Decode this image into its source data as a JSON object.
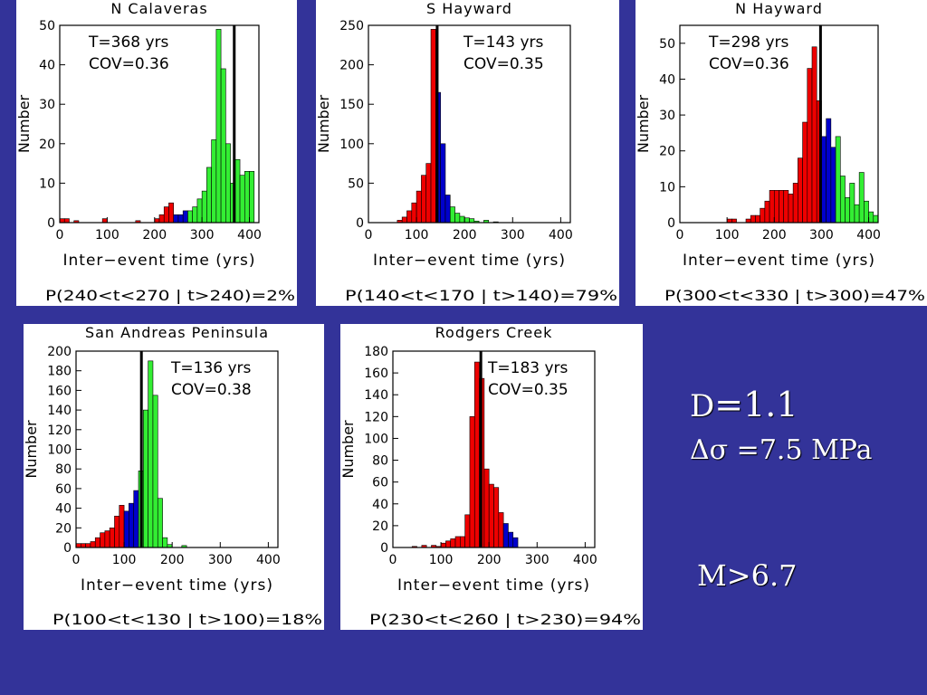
{
  "slide": {
    "d_label": "D",
    "d_value": "=1.1",
    "stress_label": "Δσ =7.5 MPa",
    "magnitude_label": "M>6.7"
  },
  "colors": {
    "background": "#333399",
    "red": "#ee0000",
    "blue": "#0000cc",
    "green": "#33ee33",
    "mean_line": "#000000"
  },
  "chart_data": [
    {
      "type": "bar",
      "title": "N Calaveras",
      "xlabel": "Inter−event time (yrs)",
      "ylabel": "Number",
      "xlim": [
        0,
        420
      ],
      "ylim": [
        0,
        50
      ],
      "xticks": [
        0,
        100,
        200,
        300,
        400
      ],
      "yticks": [
        0,
        10,
        20,
        30,
        40,
        50
      ],
      "bin_width": 10,
      "mean": 368,
      "stats": [
        "T=368 yrs",
        "COV=0.36"
      ],
      "probability": "P(240<t<270 | t>240)=2%",
      "bins": [
        {
          "x": 0,
          "y": 1,
          "c": "red"
        },
        {
          "x": 10,
          "y": 1,
          "c": "red"
        },
        {
          "x": 30,
          "y": 0.5,
          "c": "red"
        },
        {
          "x": 90,
          "y": 1,
          "c": "red"
        },
        {
          "x": 160,
          "y": 0.5,
          "c": "red"
        },
        {
          "x": 200,
          "y": 1,
          "c": "red"
        },
        {
          "x": 210,
          "y": 2,
          "c": "red"
        },
        {
          "x": 220,
          "y": 4,
          "c": "red"
        },
        {
          "x": 230,
          "y": 5,
          "c": "red"
        },
        {
          "x": 240,
          "y": 2,
          "c": "blue"
        },
        {
          "x": 250,
          "y": 2,
          "c": "blue"
        },
        {
          "x": 260,
          "y": 3,
          "c": "blue"
        },
        {
          "x": 270,
          "y": 3,
          "c": "green"
        },
        {
          "x": 280,
          "y": 4,
          "c": "green"
        },
        {
          "x": 290,
          "y": 6,
          "c": "green"
        },
        {
          "x": 300,
          "y": 8,
          "c": "green"
        },
        {
          "x": 310,
          "y": 14,
          "c": "green"
        },
        {
          "x": 320,
          "y": 21,
          "c": "green"
        },
        {
          "x": 330,
          "y": 49,
          "c": "green"
        },
        {
          "x": 340,
          "y": 39,
          "c": "green"
        },
        {
          "x": 350,
          "y": 20,
          "c": "green"
        },
        {
          "x": 360,
          "y": 10,
          "c": "green"
        },
        {
          "x": 370,
          "y": 16,
          "c": "green"
        },
        {
          "x": 380,
          "y": 12,
          "c": "green"
        },
        {
          "x": 390,
          "y": 13,
          "c": "green"
        },
        {
          "x": 400,
          "y": 13,
          "c": "green"
        }
      ]
    },
    {
      "type": "bar",
      "title": "S Hayward",
      "xlabel": "Inter−event time (yrs)",
      "ylabel": "Number",
      "xlim": [
        0,
        420
      ],
      "ylim": [
        0,
        250
      ],
      "xticks": [
        0,
        100,
        200,
        300,
        400
      ],
      "yticks": [
        0,
        50,
        100,
        150,
        200,
        250
      ],
      "bin_width": 10,
      "mean": 143,
      "stats": [
        "T=143 yrs",
        "COV=0.35"
      ],
      "probability": "P(140<t<170 | t>140)=79%",
      "bins": [
        {
          "x": 60,
          "y": 3,
          "c": "red"
        },
        {
          "x": 70,
          "y": 7,
          "c": "red"
        },
        {
          "x": 80,
          "y": 15,
          "c": "red"
        },
        {
          "x": 90,
          "y": 25,
          "c": "red"
        },
        {
          "x": 100,
          "y": 40,
          "c": "red"
        },
        {
          "x": 110,
          "y": 60,
          "c": "red"
        },
        {
          "x": 120,
          "y": 75,
          "c": "red"
        },
        {
          "x": 130,
          "y": 245,
          "c": "red"
        },
        {
          "x": 140,
          "y": 165,
          "c": "blue"
        },
        {
          "x": 150,
          "y": 100,
          "c": "blue"
        },
        {
          "x": 160,
          "y": 35,
          "c": "blue"
        },
        {
          "x": 170,
          "y": 20,
          "c": "green"
        },
        {
          "x": 180,
          "y": 12,
          "c": "green"
        },
        {
          "x": 190,
          "y": 8,
          "c": "green"
        },
        {
          "x": 200,
          "y": 6,
          "c": "green"
        },
        {
          "x": 210,
          "y": 5,
          "c": "green"
        },
        {
          "x": 220,
          "y": 2,
          "c": "green"
        },
        {
          "x": 240,
          "y": 3,
          "c": "green"
        },
        {
          "x": 260,
          "y": 1,
          "c": "green"
        }
      ]
    },
    {
      "type": "bar",
      "title": "N Hayward",
      "xlabel": "Inter−event time (yrs)",
      "ylabel": "Number",
      "xlim": [
        0,
        420
      ],
      "ylim": [
        0,
        55
      ],
      "xticks": [
        0,
        100,
        200,
        300,
        400
      ],
      "yticks": [
        0,
        10,
        20,
        30,
        40,
        50
      ],
      "bin_width": 10,
      "mean": 298,
      "stats": [
        "T=298 yrs",
        "COV=0.36"
      ],
      "probability": "P(300<t<330 | t>300)=47%",
      "bins": [
        {
          "x": 100,
          "y": 1,
          "c": "red"
        },
        {
          "x": 110,
          "y": 1,
          "c": "red"
        },
        {
          "x": 140,
          "y": 1,
          "c": "red"
        },
        {
          "x": 150,
          "y": 2,
          "c": "red"
        },
        {
          "x": 160,
          "y": 2,
          "c": "red"
        },
        {
          "x": 170,
          "y": 4,
          "c": "red"
        },
        {
          "x": 180,
          "y": 6,
          "c": "red"
        },
        {
          "x": 190,
          "y": 9,
          "c": "red"
        },
        {
          "x": 200,
          "y": 9,
          "c": "red"
        },
        {
          "x": 210,
          "y": 9,
          "c": "red"
        },
        {
          "x": 220,
          "y": 9,
          "c": "red"
        },
        {
          "x": 230,
          "y": 8,
          "c": "red"
        },
        {
          "x": 240,
          "y": 11,
          "c": "red"
        },
        {
          "x": 250,
          "y": 18,
          "c": "red"
        },
        {
          "x": 260,
          "y": 28,
          "c": "red"
        },
        {
          "x": 270,
          "y": 43,
          "c": "red"
        },
        {
          "x": 280,
          "y": 49,
          "c": "red"
        },
        {
          "x": 290,
          "y": 34,
          "c": "red"
        },
        {
          "x": 300,
          "y": 24,
          "c": "blue"
        },
        {
          "x": 310,
          "y": 29,
          "c": "blue"
        },
        {
          "x": 320,
          "y": 21,
          "c": "blue"
        },
        {
          "x": 330,
          "y": 24,
          "c": "green"
        },
        {
          "x": 340,
          "y": 13,
          "c": "green"
        },
        {
          "x": 350,
          "y": 7,
          "c": "green"
        },
        {
          "x": 360,
          "y": 11,
          "c": "green"
        },
        {
          "x": 370,
          "y": 5,
          "c": "green"
        },
        {
          "x": 380,
          "y": 14,
          "c": "green"
        },
        {
          "x": 390,
          "y": 6,
          "c": "green"
        },
        {
          "x": 400,
          "y": 3,
          "c": "green"
        },
        {
          "x": 410,
          "y": 2,
          "c": "green"
        }
      ]
    },
    {
      "type": "bar",
      "title": "San Andreas Peninsula",
      "xlabel": "Inter−event time (yrs)",
      "ylabel": "Number",
      "xlim": [
        0,
        420
      ],
      "ylim": [
        0,
        200
      ],
      "xticks": [
        0,
        100,
        200,
        300,
        400
      ],
      "yticks": [
        0,
        20,
        40,
        60,
        80,
        100,
        120,
        140,
        160,
        180,
        200
      ],
      "bin_width": 10,
      "mean": 136,
      "stats": [
        "T=136 yrs",
        "COV=0.38"
      ],
      "probability": "P(100<t<130 | t>100)=18%",
      "bins": [
        {
          "x": 0,
          "y": 4,
          "c": "red"
        },
        {
          "x": 10,
          "y": 4,
          "c": "red"
        },
        {
          "x": 20,
          "y": 4,
          "c": "red"
        },
        {
          "x": 30,
          "y": 6,
          "c": "red"
        },
        {
          "x": 40,
          "y": 10,
          "c": "red"
        },
        {
          "x": 50,
          "y": 15,
          "c": "red"
        },
        {
          "x": 60,
          "y": 17,
          "c": "red"
        },
        {
          "x": 70,
          "y": 20,
          "c": "red"
        },
        {
          "x": 80,
          "y": 32,
          "c": "red"
        },
        {
          "x": 90,
          "y": 43,
          "c": "red"
        },
        {
          "x": 100,
          "y": 37,
          "c": "blue"
        },
        {
          "x": 110,
          "y": 45,
          "c": "blue"
        },
        {
          "x": 120,
          "y": 58,
          "c": "blue"
        },
        {
          "x": 130,
          "y": 78,
          "c": "green"
        },
        {
          "x": 140,
          "y": 140,
          "c": "green"
        },
        {
          "x": 150,
          "y": 190,
          "c": "green"
        },
        {
          "x": 160,
          "y": 155,
          "c": "green"
        },
        {
          "x": 170,
          "y": 50,
          "c": "green"
        },
        {
          "x": 180,
          "y": 10,
          "c": "green"
        },
        {
          "x": 190,
          "y": 3,
          "c": "green"
        },
        {
          "x": 220,
          "y": 2,
          "c": "green"
        }
      ]
    },
    {
      "type": "bar",
      "title": "Rodgers Creek",
      "xlabel": "Inter−event time (yrs)",
      "ylabel": "Number",
      "xlim": [
        0,
        420
      ],
      "ylim": [
        0,
        180
      ],
      "xticks": [
        0,
        100,
        200,
        300,
        400
      ],
      "yticks": [
        0,
        20,
        40,
        60,
        80,
        100,
        120,
        140,
        160,
        180
      ],
      "bin_width": 10,
      "mean": 183,
      "stats": [
        "T=183 yrs",
        "COV=0.35"
      ],
      "probability": "P(230<t<260 | t>230)=94%",
      "bins": [
        {
          "x": 40,
          "y": 1,
          "c": "red"
        },
        {
          "x": 60,
          "y": 2,
          "c": "red"
        },
        {
          "x": 80,
          "y": 2,
          "c": "red"
        },
        {
          "x": 90,
          "y": 1,
          "c": "red"
        },
        {
          "x": 100,
          "y": 4,
          "c": "red"
        },
        {
          "x": 110,
          "y": 6,
          "c": "red"
        },
        {
          "x": 120,
          "y": 8,
          "c": "red"
        },
        {
          "x": 130,
          "y": 10,
          "c": "red"
        },
        {
          "x": 140,
          "y": 10,
          "c": "red"
        },
        {
          "x": 150,
          "y": 30,
          "c": "red"
        },
        {
          "x": 160,
          "y": 120,
          "c": "red"
        },
        {
          "x": 170,
          "y": 170,
          "c": "red"
        },
        {
          "x": 180,
          "y": 155,
          "c": "red"
        },
        {
          "x": 190,
          "y": 72,
          "c": "red"
        },
        {
          "x": 200,
          "y": 58,
          "c": "red"
        },
        {
          "x": 210,
          "y": 55,
          "c": "red"
        },
        {
          "x": 220,
          "y": 32,
          "c": "red"
        },
        {
          "x": 230,
          "y": 22,
          "c": "blue"
        },
        {
          "x": 240,
          "y": 14,
          "c": "blue"
        },
        {
          "x": 250,
          "y": 9,
          "c": "blue"
        }
      ]
    }
  ]
}
